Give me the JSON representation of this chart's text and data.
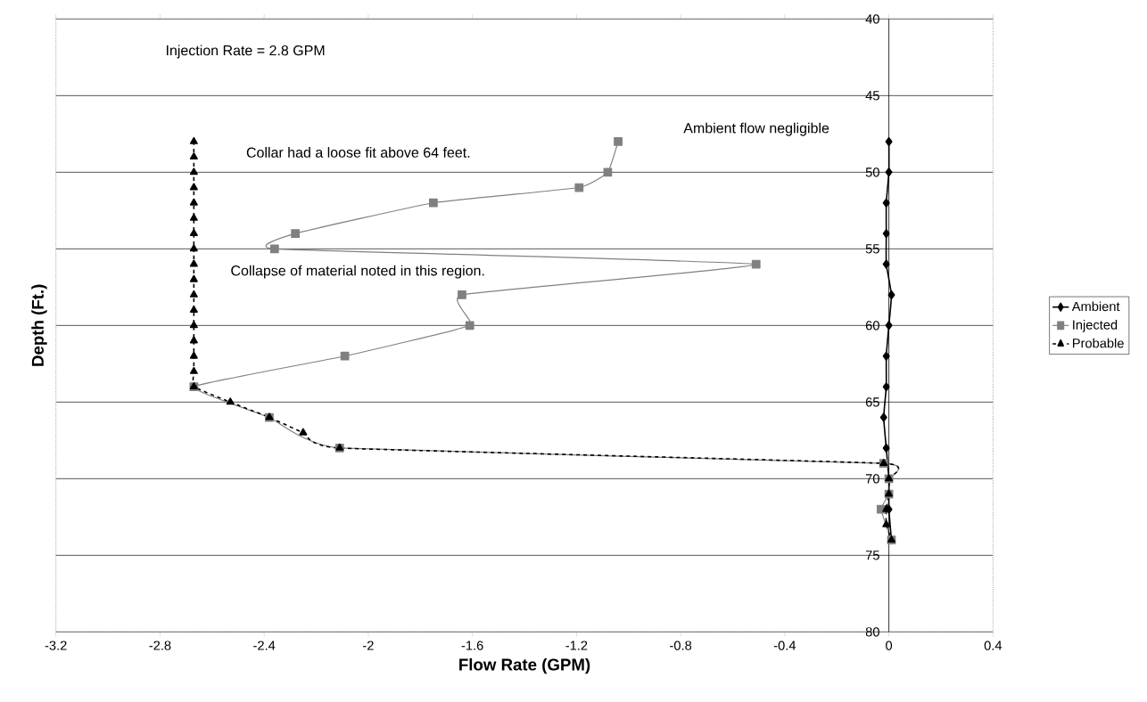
{
  "chart_data": {
    "type": "line",
    "xlabel": "Flow Rate (GPM)",
    "ylabel": "Depth (Ft.)",
    "annotations": [
      "Injection Rate = 2.8 GPM",
      "Collar had a loose fit above 64 feet.",
      "Ambient flow negligible",
      "Collapse of material noted in this region."
    ],
    "xlim": [
      -3.2,
      0.4
    ],
    "xticks": [
      -3.2,
      -2.8,
      -2.4,
      -2,
      -1.6,
      -1.2,
      -0.8,
      -0.4,
      0,
      0.4
    ],
    "ylim": [
      80,
      40
    ],
    "yticks": [
      40,
      45,
      50,
      55,
      60,
      65,
      70,
      75,
      80
    ],
    "grid": "y",
    "legend": "right",
    "series": [
      {
        "name": "Ambient",
        "color": "#000000",
        "marker": "diamond",
        "line_style": "solid",
        "x": [
          0,
          0,
          -0.01,
          -0.01,
          -0.01,
          0.01,
          0,
          -0.01,
          -0.01,
          -0.02,
          -0.01,
          0,
          0,
          0.01
        ],
        "values": [
          48,
          50,
          52,
          54,
          56,
          58,
          60,
          62,
          64,
          66,
          68,
          70,
          72,
          74
        ]
      },
      {
        "name": "Injected",
        "color": "#808080",
        "marker": "square",
        "line_style": "solid",
        "x": [
          -1.04,
          -1.08,
          -1.19,
          -1.75,
          -2.28,
          -2.36,
          -0.51,
          -1.64,
          -1.61,
          -2.09,
          -2.67,
          -2.38,
          -2.11,
          -0.02,
          0,
          0,
          -0.03,
          0.01
        ],
        "values": [
          48,
          50,
          51,
          52,
          54,
          55,
          56,
          58,
          60,
          62,
          64,
          66,
          68,
          69,
          70,
          71,
          72,
          74
        ]
      },
      {
        "name": "Probable",
        "color": "#000000",
        "marker": "triangle",
        "line_style": "dashed",
        "x": [
          -2.67,
          -2.67,
          -2.67,
          -2.67,
          -2.67,
          -2.67,
          -2.67,
          -2.67,
          -2.67,
          -2.67,
          -2.67,
          -2.67,
          -2.67,
          -2.67,
          -2.67,
          -2.67,
          -2.67,
          -2.53,
          -2.38,
          -2.25,
          -2.11,
          -0.02,
          0,
          0,
          -0.01,
          -0.01,
          0.01
        ],
        "values": [
          48,
          49,
          50,
          51,
          52,
          53,
          54,
          55,
          56,
          57,
          58,
          59,
          60,
          61,
          62,
          63,
          64,
          65,
          66,
          67,
          68,
          69,
          70,
          71,
          72,
          73,
          74
        ]
      }
    ]
  }
}
